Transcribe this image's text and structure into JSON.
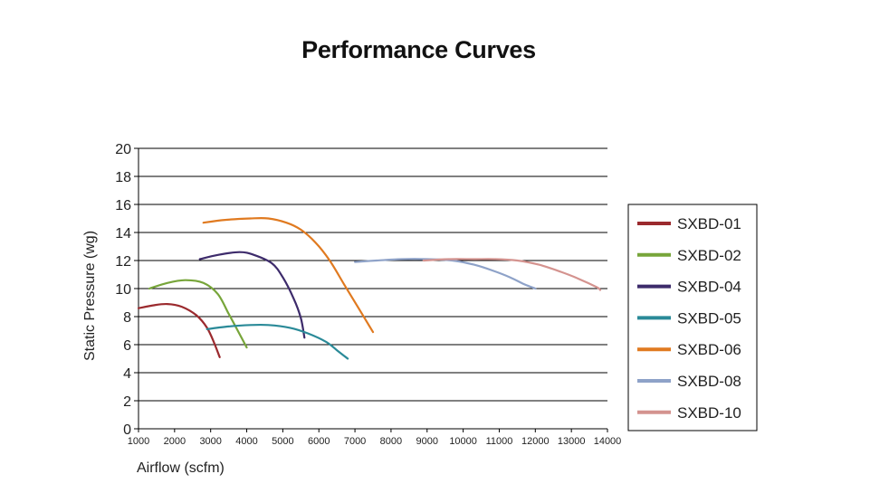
{
  "chart_data": {
    "type": "line",
    "title": "Performance Curves",
    "xlabel": "Airflow (scfm)",
    "ylabel": "Static Pressure (wg)",
    "xlim": [
      1000,
      14000
    ],
    "ylim": [
      0,
      20
    ],
    "x_ticks": [
      "1000",
      "2000",
      "3000",
      "4000",
      "5000",
      "6000",
      "7000",
      "8000",
      "9000",
      "10000",
      "11000",
      "12000",
      "13000",
      "14000"
    ],
    "y_ticks": [
      "0",
      "2",
      "4",
      "6",
      "8",
      "10",
      "12",
      "14",
      "16",
      "18",
      "20"
    ],
    "grid": "horizontal",
    "legend_position": "right",
    "series": [
      {
        "name": "SXBD-01",
        "color": "#9b2a2e",
        "points": [
          [
            1000,
            8.6
          ],
          [
            1400,
            8.8
          ],
          [
            1800,
            8.9
          ],
          [
            2200,
            8.7
          ],
          [
            2600,
            8.1
          ],
          [
            2900,
            7.2
          ],
          [
            3100,
            6.1
          ],
          [
            3250,
            5.1
          ]
        ]
      },
      {
        "name": "SXBD-02",
        "color": "#77a53a",
        "points": [
          [
            1300,
            10.0
          ],
          [
            1800,
            10.4
          ],
          [
            2300,
            10.6
          ],
          [
            2800,
            10.4
          ],
          [
            3200,
            9.6
          ],
          [
            3500,
            8.2
          ],
          [
            3750,
            7.0
          ],
          [
            4000,
            5.8
          ]
        ]
      },
      {
        "name": "SXBD-04",
        "color": "#3d2b6b",
        "points": [
          [
            2700,
            12.1
          ],
          [
            3200,
            12.4
          ],
          [
            3800,
            12.6
          ],
          [
            4200,
            12.4
          ],
          [
            4700,
            11.8
          ],
          [
            5000,
            10.8
          ],
          [
            5300,
            9.3
          ],
          [
            5500,
            7.9
          ],
          [
            5600,
            6.5
          ]
        ]
      },
      {
        "name": "SXBD-05",
        "color": "#2a8a98",
        "points": [
          [
            2900,
            7.1
          ],
          [
            3500,
            7.3
          ],
          [
            4100,
            7.4
          ],
          [
            4600,
            7.4
          ],
          [
            5200,
            7.2
          ],
          [
            5700,
            6.8
          ],
          [
            6200,
            6.2
          ],
          [
            6500,
            5.6
          ],
          [
            6800,
            5.0
          ]
        ]
      },
      {
        "name": "SXBD-06",
        "color": "#e07a20",
        "points": [
          [
            2800,
            14.7
          ],
          [
            3400,
            14.9
          ],
          [
            4100,
            15.0
          ],
          [
            4600,
            15.0
          ],
          [
            5100,
            14.7
          ],
          [
            5500,
            14.2
          ],
          [
            5900,
            13.3
          ],
          [
            6300,
            12.0
          ],
          [
            6700,
            10.3
          ],
          [
            7100,
            8.6
          ],
          [
            7500,
            6.9
          ]
        ]
      },
      {
        "name": "SXBD-08",
        "color": "#8ea2c8",
        "points": [
          [
            7000,
            11.9
          ],
          [
            7600,
            12.0
          ],
          [
            8300,
            12.1
          ],
          [
            9000,
            12.1
          ],
          [
            9700,
            12.0
          ],
          [
            10300,
            11.7
          ],
          [
            10800,
            11.3
          ],
          [
            11300,
            10.8
          ],
          [
            11700,
            10.3
          ],
          [
            12000,
            10.0
          ]
        ]
      },
      {
        "name": "SXBD-10",
        "color": "#d4938f",
        "points": [
          [
            8900,
            12.0
          ],
          [
            9600,
            12.1
          ],
          [
            10300,
            12.1
          ],
          [
            10900,
            12.1
          ],
          [
            11500,
            12.0
          ],
          [
            12100,
            11.7
          ],
          [
            12700,
            11.2
          ],
          [
            13200,
            10.7
          ],
          [
            13700,
            10.1
          ],
          [
            13800,
            9.9
          ]
        ]
      }
    ]
  }
}
